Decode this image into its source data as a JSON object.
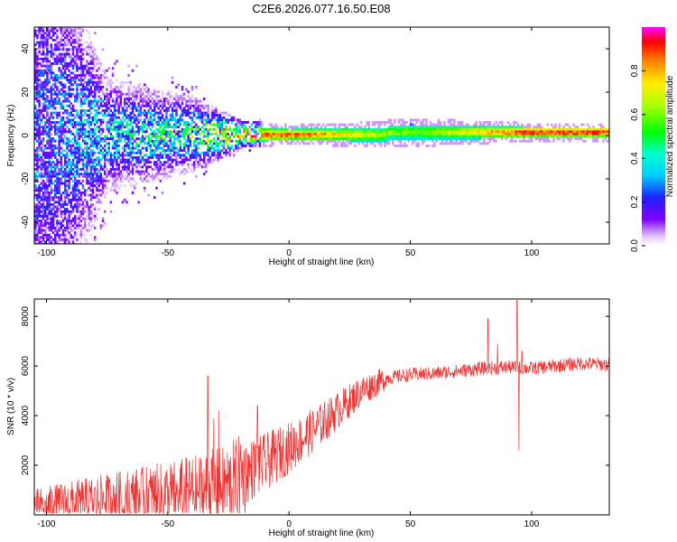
{
  "title": "C2E6.2026.077.16.50.E08",
  "chart_data": [
    {
      "type": "heatmap",
      "xlabel": "Height of straight line (km)",
      "ylabel": "Frequency (Hz)",
      "xlim": [
        -105,
        132
      ],
      "ylim": [
        -50,
        50
      ],
      "xticks": [
        -100,
        -50,
        0,
        50,
        100
      ],
      "yticks": [
        -40,
        -20,
        0,
        20,
        40
      ],
      "colorbar": {
        "label": "Normalized spectral amplitude",
        "range": [
          0,
          1
        ],
        "ticks": [
          0.0,
          0.2,
          0.4,
          0.6,
          0.8
        ]
      },
      "description_points": [
        {
          "x": -100,
          "spread_hz": 45,
          "peak_amp": 0.25
        },
        {
          "x": -75,
          "spread_hz": 12,
          "peak_amp": 0.35
        },
        {
          "x": -40,
          "spread_hz": 8,
          "peak_amp": 0.45
        },
        {
          "x": -20,
          "spread_hz": 3,
          "peak_amp": 0.85
        },
        {
          "x": 0,
          "spread_hz": 2,
          "peak_amp": 0.95
        },
        {
          "x": 50,
          "spread_hz": 3,
          "peak_amp": 0.6
        },
        {
          "x": 100,
          "spread_hz": 2,
          "peak_amp": 0.95
        },
        {
          "x": 132,
          "spread_hz": 2,
          "peak_amp": 0.95
        }
      ]
    },
    {
      "type": "line",
      "xlabel": "Height of straight line (km)",
      "ylabel": "SNR (10 * v/v)",
      "xlim": [
        -105,
        132
      ],
      "ylim": [
        0,
        8700
      ],
      "xticks": [
        -100,
        -50,
        0,
        50,
        100
      ],
      "yticks": [
        2000,
        4000,
        6000,
        8000
      ],
      "series": [
        {
          "name": "SNR",
          "color": "#ee3333",
          "trend": {
            "x": [
              -105,
              -90,
              -70,
              -50,
              -35,
              -25,
              -18,
              -10,
              0,
              10,
              20,
              30,
              40,
              50,
              60,
              70,
              80,
              90,
              100,
              110,
              120,
              132
            ],
            "y": [
              350,
              500,
              650,
              800,
              1000,
              1200,
              1700,
              2100,
              2700,
              3400,
              4200,
              5000,
              5500,
              5650,
              5700,
              5800,
              5900,
              5950,
              5900,
              6000,
              6100,
              6050
            ]
          },
          "spikes": [
            {
              "x": -33.5,
              "y": 5600
            },
            {
              "x": -29,
              "y": 4200
            },
            {
              "x": -31,
              "y": 3900
            },
            {
              "x": -13,
              "y": 4400
            },
            {
              "x": 82,
              "y": 7900
            },
            {
              "x": 86,
              "y": 6900
            },
            {
              "x": 94,
              "y": 8650
            },
            {
              "x": 94.8,
              "y": 2600
            },
            {
              "x": 96,
              "y": 6600
            }
          ]
        }
      ]
    }
  ]
}
